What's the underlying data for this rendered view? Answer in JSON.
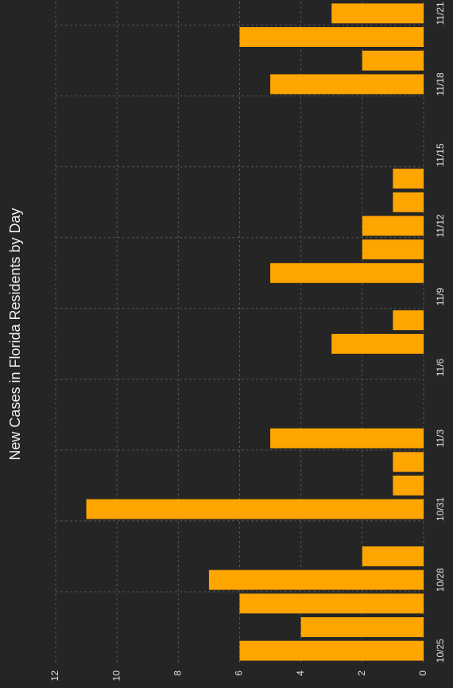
{
  "chart_data": {
    "type": "bar",
    "title": "New Cases in Florida Residents by Day",
    "categories": [
      "10/25",
      null,
      null,
      "10/28",
      null,
      null,
      "10/31",
      null,
      null,
      "11/3",
      null,
      null,
      "11/6",
      null,
      null,
      "11/9",
      null,
      null,
      "11/12",
      null,
      null,
      "11/15",
      null,
      null,
      "11/18",
      null,
      null,
      "11/21"
    ],
    "values": [
      6,
      4,
      6,
      7,
      2,
      0,
      11,
      1,
      1,
      5,
      0,
      0,
      0,
      3,
      1,
      0,
      5,
      2,
      2,
      1,
      1,
      0,
      0,
      0,
      5,
      2,
      6,
      3
    ],
    "color": "#ffa500",
    "ylim": [
      0,
      12
    ],
    "yticks": [
      0,
      2,
      4,
      6,
      8,
      10,
      12
    ],
    "grid": true
  }
}
